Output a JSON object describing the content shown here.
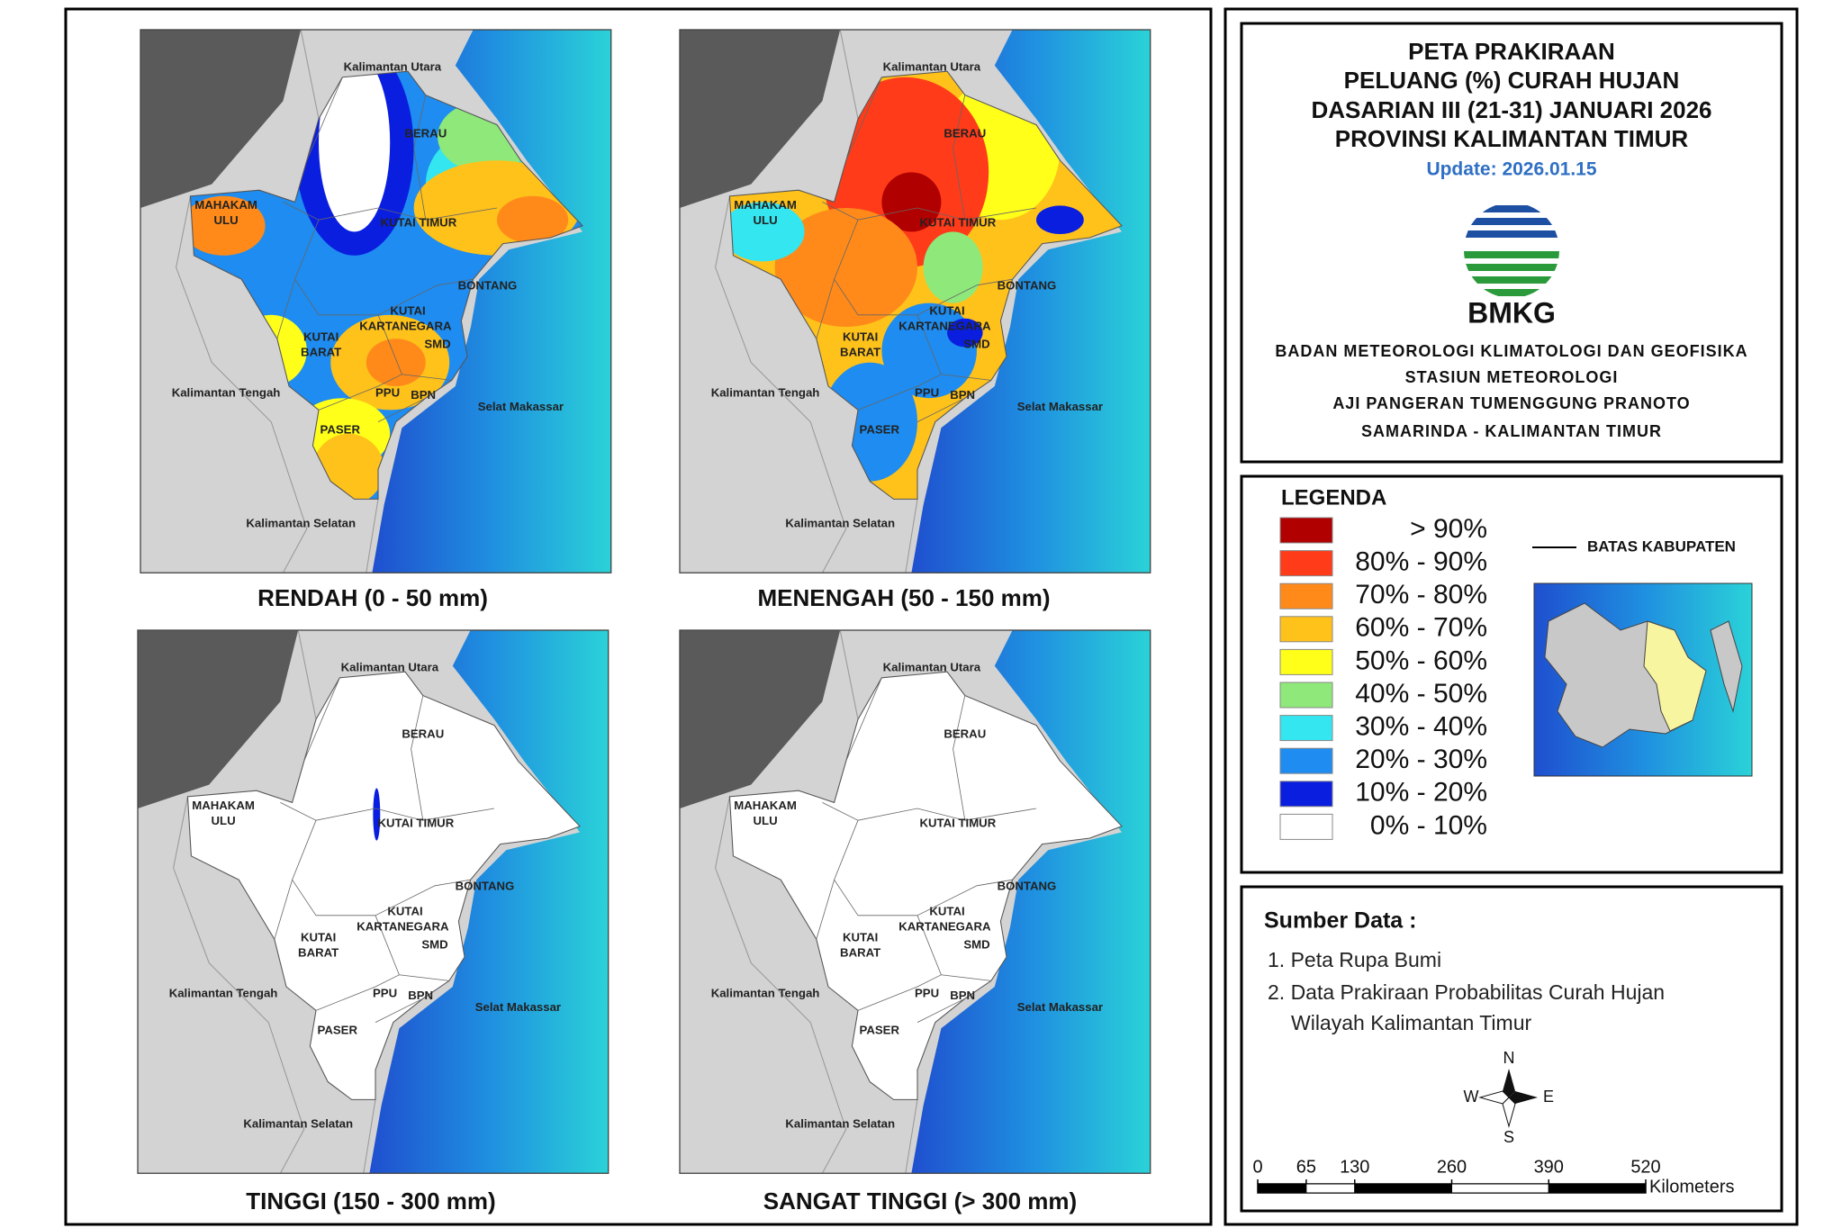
{
  "maps": [
    {
      "title": "RENDAH (0 - 50 mm)"
    },
    {
      "title": "MENENGAH (50 - 150 mm)"
    },
    {
      "title": "TINGGI (150 - 300 mm)"
    },
    {
      "title": "SANGAT TINGGI (> 300 mm)"
    }
  ],
  "region_labels": [
    "Kalimantan Utara",
    "BERAU",
    "MAHAKAM",
    "ULU",
    "KUTAI TIMUR",
    "BONTANG",
    "KUTAI",
    "KARTANEGARA",
    "KUTAI",
    "BARAT",
    "SMD",
    "Kalimantan Tengah",
    "PPU",
    "BPN",
    "Selat Makassar",
    "PASER",
    "Kalimantan Selatan"
  ],
  "header": {
    "title_lines": [
      "PETA PRAKIRAAN",
      "PELUANG (%) CURAH HUJAN",
      "DASARIAN III (21-31) JANUARI 2026",
      "PROVINSI KALIMANTAN TIMUR"
    ],
    "update": "Update: 2026.01.15",
    "logo_text": "BMKG",
    "org_lines": [
      "BADAN METEOROLOGI KLIMATOLOGI DAN GEOFISIKA",
      "STASIUN METEOROLOGI",
      "AJI PANGERAN TUMENGGUNG PRANOTO",
      "SAMARINDA - KALIMANTAN TIMUR"
    ]
  },
  "legend": {
    "title": "LEGENDA",
    "items": [
      {
        "label": "> 90%",
        "color": "#b00000"
      },
      {
        "label": "80% - 90%",
        "color": "#ff3b1a"
      },
      {
        "label": "70% - 80%",
        "color": "#ff8a1a"
      },
      {
        "label": "60% - 70%",
        "color": "#ffc21a"
      },
      {
        "label": "50% - 60%",
        "color": "#ffff1a"
      },
      {
        "label": "40% - 50%",
        "color": "#8ee87a"
      },
      {
        "label": "30% - 40%",
        "color": "#33e6f0"
      },
      {
        "label": "20% - 30%",
        "color": "#1e8cf0"
      },
      {
        "label": "10% - 20%",
        "color": "#0a1ee0"
      },
      {
        "label": "0% - 10%",
        "color": "#ffffff"
      }
    ],
    "boundary_label": "BATAS KABUPATEN"
  },
  "source": {
    "title": "Sumber Data :",
    "items": [
      "1. Peta Rupa Bumi",
      "2. Data Prakiraan Probabilitas Curah Hujan",
      "Wilayah Kalimantan Timur"
    ]
  },
  "compass": {
    "n": "N",
    "e": "E",
    "s": "S",
    "w": "W"
  },
  "scale_bar": {
    "ticks": [
      0,
      65,
      130,
      260,
      390,
      520
    ],
    "unit": "Kilometers"
  }
}
